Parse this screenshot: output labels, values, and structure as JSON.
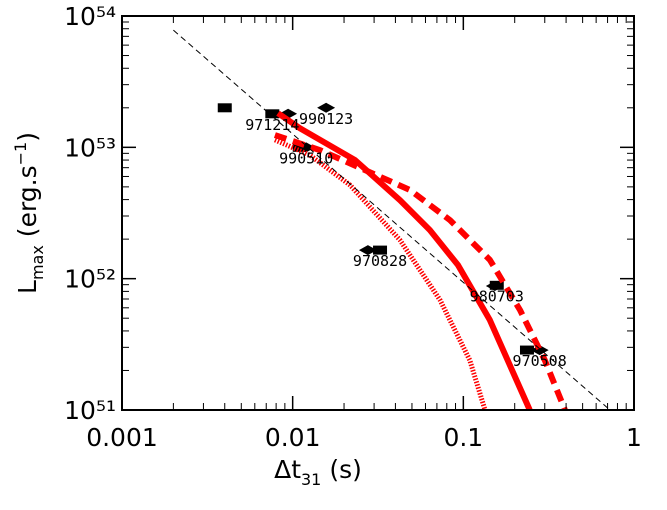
{
  "chart_data": {
    "type": "scatter",
    "xscale": "log",
    "yscale": "log",
    "xlim": [
      0.001,
      1
    ],
    "ylim": [
      1e+51,
      1e+54
    ],
    "xticks": [
      0.001,
      0.01,
      0.1,
      1
    ],
    "yticks": [
      {
        "value": 1e+51,
        "label": "10⁵¹"
      },
      {
        "value": 1e+52,
        "label": "10⁵²"
      },
      {
        "value": 1e+53,
        "label": "10⁵³"
      },
      {
        "value": 1e+54,
        "label": "10⁵⁴"
      }
    ],
    "xlabel": {
      "main": "Δt",
      "sub": "31",
      "unit": "(s)"
    },
    "ylabel": {
      "main": "L",
      "sub": "max",
      "unit": "(erg.s",
      "sup": "−1",
      "close": ")"
    },
    "series": [
      {
        "marker": "square",
        "color": "#000000",
        "x": [
          0.004,
          0.0076,
          0.011,
          0.0325,
          0.157,
          0.236
        ],
        "values": [
          2e+53,
          1.8e+53,
          1e+53,
          1.65e+52,
          8.9e+51,
          2.86e+51
        ]
      },
      {
        "marker": "diamond",
        "color": "#000000",
        "x": [
          0.0094,
          0.0157,
          0.012,
          0.0276,
          0.153,
          0.28
        ],
        "values": [
          1.8e+53,
          2e+53,
          1e+53,
          1.65e+52,
          8.8e+51,
          2.86e+51
        ]
      },
      {
        "marker": "line",
        "style": "solid",
        "color": "#ff0000",
        "x": [
          0.0082,
          0.011,
          0.0232,
          0.0425,
          0.0637,
          0.093,
          0.143,
          0.193,
          0.245
        ],
        "values": [
          1.82e+53,
          1.4e+53,
          8e+52,
          3.96e+52,
          2.34e+52,
          1.27e+52,
          4.84e+51,
          2.01e+51,
          1e+51
        ]
      },
      {
        "marker": "line",
        "style": "dashed",
        "color": "#ff0000",
        "x": [
          0.00787,
          0.0145,
          0.0248,
          0.0487,
          0.0835,
          0.143,
          0.215,
          0.3,
          0.394
        ],
        "values": [
          1.24e+53,
          9.5e+52,
          6.98e+52,
          4.73e+52,
          2.79e+52,
          1.39e+52,
          5.76e+51,
          2.4e+51,
          1e+51
        ]
      },
      {
        "marker": "line",
        "style": "dotted",
        "color": "#ff0000",
        "x": [
          0.00787,
          0.0126,
          0.0217,
          0.0425,
          0.073,
          0.109,
          0.134
        ],
        "values": [
          1.14e+53,
          8.73e+52,
          5.16e+52,
          1.97e+52,
          6.88e+51,
          2.4e+51,
          1e+51
        ]
      },
      {
        "marker": "line",
        "style": "thin-dashed",
        "color": "#000000",
        "x": [
          0.002,
          0.723
        ],
        "values": [
          7.8e+53,
          1e+51
        ]
      }
    ],
    "annotations": [
      {
        "text": "990123",
        "x": 0.0157,
        "y": 2e+53
      },
      {
        "text": "971214",
        "x": 0.0076,
        "y": 1.8e+53
      },
      {
        "text": "990510",
        "x": 0.012,
        "y": 1e+53
      },
      {
        "text": "970828",
        "x": 0.0325,
        "y": 1.65e+52
      },
      {
        "text": "980703",
        "x": 0.157,
        "y": 8.9e+51
      },
      {
        "text": "970508",
        "x": 0.28,
        "y": 2.86e+51
      }
    ]
  }
}
